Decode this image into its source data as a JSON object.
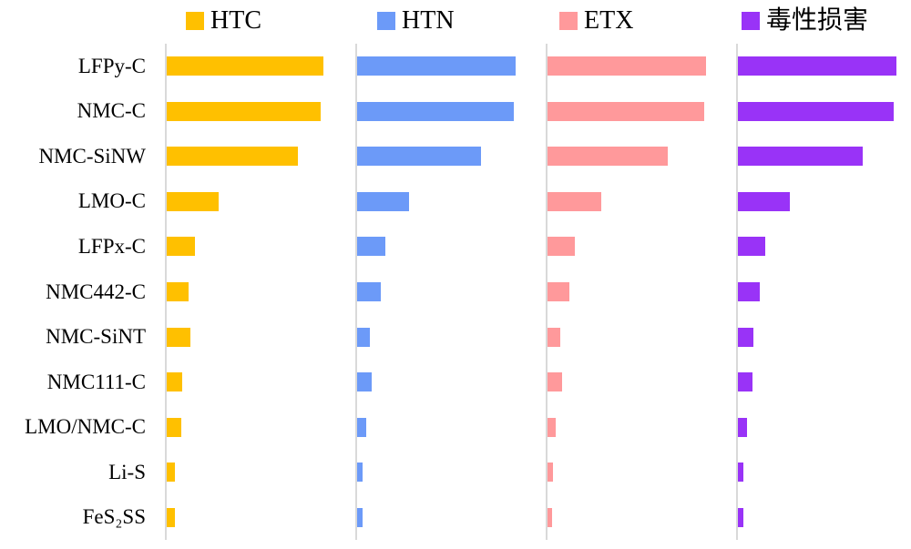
{
  "chart_data": {
    "type": "bar",
    "orientation": "horizontal",
    "layout": "four side-by-side panels, one per series, sharing one category axis",
    "title": "",
    "xlabel": "",
    "ylabel": "",
    "grid": false,
    "legend_position": "top",
    "axis_line_color": "#d9d9d9",
    "value_axis": {
      "ticks_visible": false,
      "range_percent": [
        0,
        100
      ],
      "note": "no numeric scale shown in image; values estimated as percent of longest bar"
    },
    "categories": [
      "LFPy-C",
      "NMC-C",
      "NMC-SiNW",
      "LMO-C",
      "LFPx-C",
      "NMC442-C",
      "NMC-SiNT",
      "NMC111-C",
      "LMO/NMC-C",
      "Li-S",
      "FeS₂SS"
    ],
    "series": [
      {
        "name": "HTC",
        "color": "#FFC000",
        "values": [
          99,
          97,
          83,
          33,
          18,
          14,
          15,
          10,
          9,
          5,
          5
        ]
      },
      {
        "name": "HTN",
        "color": "#6C9AF8",
        "values": [
          100,
          99,
          78,
          33,
          18,
          15,
          8,
          9,
          6,
          3.5,
          3.5
        ]
      },
      {
        "name": "ETX",
        "color": "#FF999B",
        "values": [
          100,
          99,
          76,
          34,
          17,
          14,
          8,
          9,
          5,
          3.5,
          3
        ]
      },
      {
        "name": "毒性损害",
        "color": "#9933F7",
        "values": [
          100,
          98,
          79,
          33,
          17,
          14,
          10,
          9,
          6,
          3.5,
          3.5
        ]
      }
    ]
  }
}
